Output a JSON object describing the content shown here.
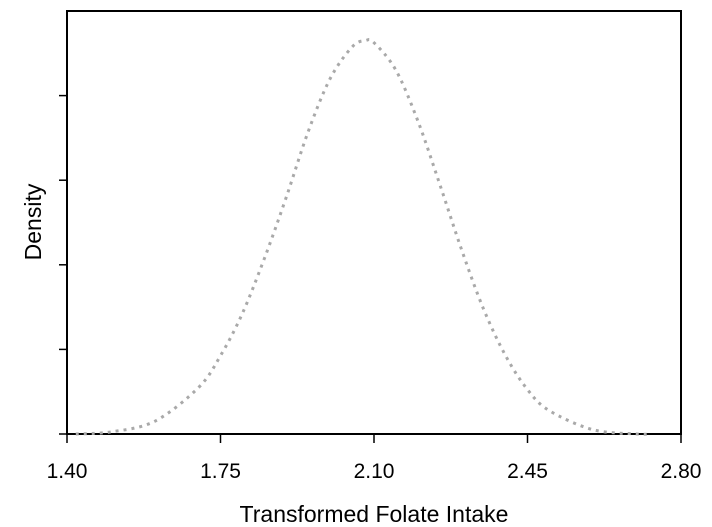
{
  "chart_data": {
    "type": "line",
    "title": "",
    "xlabel": "Transformed Folate Intake",
    "ylabel": "Density",
    "xlim": [
      1.4,
      2.8
    ],
    "x_ticks": [
      "1.40",
      "1.75",
      "2.10",
      "2.45",
      "2.80"
    ],
    "y_ticks_count": 5,
    "y_tick_labels_shown": false,
    "grid": false,
    "legend": "none",
    "series": [
      {
        "style": "dotted",
        "color": "#a9a9a9",
        "x": [
          1.42,
          1.5,
          1.6,
          1.7,
          1.75,
          1.8,
          1.85,
          1.9,
          1.95,
          2.0,
          2.05,
          2.08,
          2.1,
          2.15,
          2.2,
          2.25,
          2.3,
          2.35,
          2.4,
          2.45,
          2.5,
          2.6,
          2.7,
          2.73
        ],
        "y": [
          0.0,
          0.01,
          0.06,
          0.22,
          0.37,
          0.57,
          0.83,
          1.12,
          1.43,
          1.68,
          1.83,
          1.86,
          1.85,
          1.72,
          1.48,
          1.18,
          0.87,
          0.59,
          0.37,
          0.21,
          0.11,
          0.02,
          0.0,
          0.0
        ]
      }
    ]
  }
}
